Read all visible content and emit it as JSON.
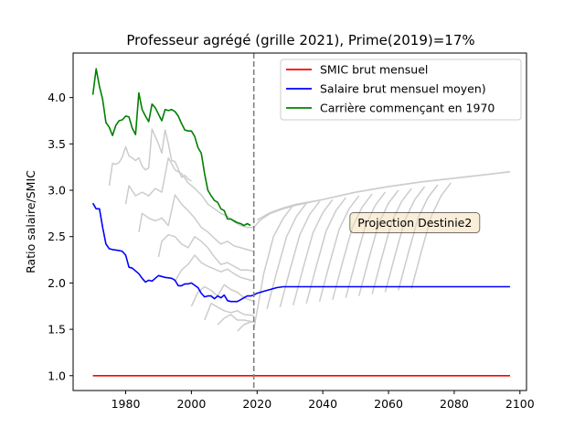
{
  "chart_data": {
    "type": "line",
    "title": "Professeur agrégé (grille 2021), Prime(2019)=17%",
    "xlabel": "",
    "ylabel": "Ratio salaire/SMIC",
    "xlim": [
      1964,
      2102
    ],
    "ylim": [
      0.84,
      4.48
    ],
    "xticks": [
      1980,
      2000,
      2020,
      2040,
      2060,
      2080,
      2100
    ],
    "yticks": [
      1.0,
      1.5,
      2.0,
      2.5,
      3.0,
      3.5,
      4.0
    ],
    "xtick_labels": [
      "1980",
      "2000",
      "2020",
      "2040",
      "2060",
      "2080",
      "2100"
    ],
    "ytick_labels": [
      "1.0",
      "1.5",
      "2.0",
      "2.5",
      "3.0",
      "3.5",
      "4.0"
    ],
    "grid": false,
    "legend_position": "top-right",
    "projection_line_x": 2019,
    "annotation": {
      "text": "Projection Destinie2",
      "x": 2068,
      "y": 2.65
    },
    "series": [
      {
        "name": "SMIC brut mensuel",
        "color": "#ff0000",
        "x": [
          1970,
          2097
        ],
        "y": [
          1.0,
          1.0
        ]
      },
      {
        "name": "Salaire brut mensuel moyen)",
        "color": "#0000ff",
        "x": [
          1970,
          1971,
          1972,
          1973,
          1974,
          1975,
          1976,
          1978,
          1979,
          1980,
          1981,
          1982,
          1984,
          1985,
          1986,
          1987,
          1988,
          1989,
          1990,
          1992,
          1994,
          1995,
          1996,
          1997,
          1998,
          1999,
          2000,
          2002,
          2003,
          2004,
          2005,
          2006,
          2007,
          2008,
          2009,
          2010,
          2011,
          2012,
          2013,
          2014,
          2015,
          2016,
          2017,
          2018,
          2019,
          2020,
          2022,
          2024,
          2026,
          2028,
          2030,
          2035,
          2040,
          2097
        ],
        "y": [
          2.86,
          2.8,
          2.8,
          2.6,
          2.42,
          2.37,
          2.36,
          2.35,
          2.34,
          2.3,
          2.17,
          2.16,
          2.1,
          2.05,
          2.01,
          2.03,
          2.02,
          2.05,
          2.08,
          2.06,
          2.05,
          2.03,
          1.97,
          1.97,
          1.99,
          1.99,
          2.0,
          1.95,
          1.89,
          1.85,
          1.86,
          1.86,
          1.83,
          1.86,
          1.84,
          1.87,
          1.81,
          1.8,
          1.8,
          1.8,
          1.82,
          1.84,
          1.86,
          1.86,
          1.87,
          1.89,
          1.91,
          1.93,
          1.95,
          1.96,
          1.96,
          1.96,
          1.96,
          1.96
        ]
      },
      {
        "name": "Carrière commençant en 1970",
        "color": "#008000",
        "x": [
          1970,
          1971,
          1972,
          1973,
          1974,
          1975,
          1976,
          1977,
          1978,
          1979,
          1980,
          1981,
          1982,
          1983,
          1984,
          1985,
          1986,
          1987,
          1988,
          1989,
          1990,
          1991,
          1992,
          1993,
          1994,
          1995,
          1996,
          1997,
          1998,
          1999,
          2000,
          2001,
          2002,
          2003,
          2004,
          2005,
          2006,
          2007,
          2008,
          2009,
          2010,
          2011,
          2012,
          2013,
          2014,
          2015,
          2016,
          2017,
          2018
        ],
        "y": [
          4.03,
          4.31,
          4.12,
          3.98,
          3.73,
          3.68,
          3.59,
          3.7,
          3.75,
          3.76,
          3.8,
          3.79,
          3.67,
          3.6,
          4.05,
          3.87,
          3.8,
          3.74,
          3.93,
          3.89,
          3.82,
          3.75,
          3.87,
          3.86,
          3.87,
          3.85,
          3.8,
          3.72,
          3.65,
          3.64,
          3.64,
          3.58,
          3.46,
          3.4,
          3.18,
          3.0,
          2.94,
          2.89,
          2.87,
          2.8,
          2.78,
          2.69,
          2.69,
          2.67,
          2.65,
          2.64,
          2.62,
          2.64,
          2.62
        ]
      }
    ],
    "background_series": [
      {
        "x": [
          1975,
          1976,
          1977,
          1978,
          1979,
          1980,
          1981,
          1982,
          1983,
          1984,
          1985,
          1986,
          1987,
          1988,
          1989,
          1990,
          1991,
          1992,
          1993,
          1994,
          1995,
          1996,
          1997,
          1998,
          1999,
          2000
        ],
        "y": [
          3.05,
          3.29,
          3.28,
          3.3,
          3.36,
          3.47,
          3.37,
          3.35,
          3.32,
          3.35,
          3.26,
          3.22,
          3.24,
          3.66,
          3.58,
          3.5,
          3.4,
          3.65,
          3.5,
          3.32,
          3.31,
          3.23,
          3.14,
          3.16,
          3.12,
          3.1
        ]
      },
      {
        "x": [
          1980,
          1981,
          1983,
          1985,
          1987,
          1989,
          1991,
          1993,
          1995,
          1997,
          1999,
          2001,
          2003,
          2005,
          2007,
          2009,
          2011,
          2013,
          2015,
          2017,
          2019,
          2021,
          2024,
          2028,
          2032,
          2040,
          2050,
          2060,
          2070,
          2080,
          2090,
          2097
        ],
        "y": [
          2.85,
          3.05,
          2.94,
          2.98,
          2.94,
          3.02,
          2.98,
          3.35,
          3.22,
          3.18,
          3.08,
          3.02,
          2.95,
          2.85,
          2.8,
          2.75,
          2.72,
          2.66,
          2.62,
          2.6,
          2.6,
          2.68,
          2.75,
          2.8,
          2.84,
          2.9,
          2.98,
          3.04,
          3.09,
          3.13,
          3.17,
          3.2
        ]
      },
      {
        "x": [
          1984,
          1985,
          1987,
          1989,
          1991,
          1993,
          1995,
          1997,
          1999,
          2001,
          2003,
          2005,
          2007,
          2009,
          2011,
          2013,
          2015,
          2017,
          2019
        ],
        "y": [
          2.55,
          2.75,
          2.7,
          2.67,
          2.7,
          2.62,
          2.95,
          2.85,
          2.78,
          2.7,
          2.6,
          2.55,
          2.48,
          2.42,
          2.45,
          2.4,
          2.38,
          2.36,
          2.34
        ]
      },
      {
        "x": [
          1990,
          1991,
          1993,
          1995,
          1997,
          1999,
          2001,
          2003,
          2005,
          2007,
          2009,
          2011,
          2013,
          2015,
          2017,
          2019
        ],
        "y": [
          2.28,
          2.45,
          2.52,
          2.5,
          2.42,
          2.38,
          2.5,
          2.45,
          2.38,
          2.28,
          2.2,
          2.22,
          2.18,
          2.14,
          2.14,
          2.13
        ]
      },
      {
        "x": [
          1995,
          1997,
          1999,
          2001,
          2003,
          2005,
          2007,
          2009,
          2011,
          2013,
          2015,
          2017,
          2019
        ],
        "y": [
          2.02,
          2.14,
          2.2,
          2.3,
          2.22,
          2.18,
          2.15,
          2.12,
          2.15,
          2.1,
          2.06,
          2.04,
          2.02
        ]
      },
      {
        "x": [
          2000,
          2002,
          2004,
          2006,
          2008,
          2010,
          2012,
          2014,
          2016,
          2019
        ],
        "y": [
          1.75,
          1.9,
          1.96,
          1.92,
          1.86,
          1.98,
          1.93,
          1.9,
          1.84,
          1.8
        ]
      },
      {
        "x": [
          2004,
          2006,
          2008,
          2010,
          2012,
          2014,
          2016,
          2019
        ],
        "y": [
          1.6,
          1.78,
          1.74,
          1.7,
          1.68,
          1.7,
          1.66,
          1.65
        ]
      },
      {
        "x": [
          2008,
          2010,
          2012,
          2014,
          2016,
          2019
        ],
        "y": [
          1.55,
          1.62,
          1.66,
          1.6,
          1.6,
          1.58
        ]
      },
      {
        "x": [
          2014,
          2016,
          2018,
          2019
        ],
        "y": [
          1.48,
          1.55,
          1.58,
          1.58
        ]
      },
      {
        "x": [
          2020,
          2024,
          2028,
          2032,
          2040,
          2050,
          2060,
          2070,
          2080,
          2090,
          2097
        ],
        "y": [
          2.68,
          2.76,
          2.81,
          2.85,
          2.9,
          2.98,
          3.04,
          3.09,
          3.13,
          3.17,
          3.2
        ]
      },
      {
        "x": [
          2019,
          2022,
          2025,
          2028,
          2031
        ],
        "y": [
          1.5,
          2.1,
          2.5,
          2.7,
          2.84
        ]
      },
      {
        "x": [
          2023,
          2026,
          2029,
          2032,
          2035
        ],
        "y": [
          1.72,
          2.12,
          2.5,
          2.72,
          2.86
        ]
      },
      {
        "x": [
          2027,
          2030,
          2033,
          2036,
          2039
        ],
        "y": [
          1.74,
          2.14,
          2.52,
          2.74,
          2.88
        ]
      },
      {
        "x": [
          2031,
          2034,
          2037,
          2040,
          2043
        ],
        "y": [
          1.76,
          2.16,
          2.54,
          2.76,
          2.9
        ]
      },
      {
        "x": [
          2035,
          2038,
          2041,
          2044,
          2047
        ],
        "y": [
          1.78,
          2.18,
          2.56,
          2.78,
          2.92
        ]
      },
      {
        "x": [
          2039,
          2042,
          2045,
          2048,
          2051
        ],
        "y": [
          1.8,
          2.2,
          2.58,
          2.8,
          2.94
        ]
      },
      {
        "x": [
          2043,
          2046,
          2049,
          2052,
          2055
        ],
        "y": [
          1.82,
          2.22,
          2.6,
          2.82,
          2.96
        ]
      },
      {
        "x": [
          2047,
          2050,
          2053,
          2056,
          2059
        ],
        "y": [
          1.84,
          2.24,
          2.62,
          2.84,
          2.98
        ]
      },
      {
        "x": [
          2051,
          2054,
          2057,
          2060,
          2063
        ],
        "y": [
          1.86,
          2.26,
          2.64,
          2.86,
          3.0
        ]
      },
      {
        "x": [
          2055,
          2058,
          2061,
          2064,
          2067
        ],
        "y": [
          1.88,
          2.28,
          2.66,
          2.88,
          3.02
        ]
      },
      {
        "x": [
          2059,
          2062,
          2065,
          2068,
          2071
        ],
        "y": [
          1.9,
          2.3,
          2.68,
          2.9,
          3.04
        ]
      },
      {
        "x": [
          2063,
          2066,
          2069,
          2072,
          2075
        ],
        "y": [
          1.92,
          2.32,
          2.7,
          2.92,
          3.06
        ]
      },
      {
        "x": [
          2067,
          2070,
          2073,
          2076,
          2079
        ],
        "y": [
          1.94,
          2.34,
          2.72,
          2.94,
          3.08
        ]
      }
    ],
    "background_color": "#cccccc"
  }
}
